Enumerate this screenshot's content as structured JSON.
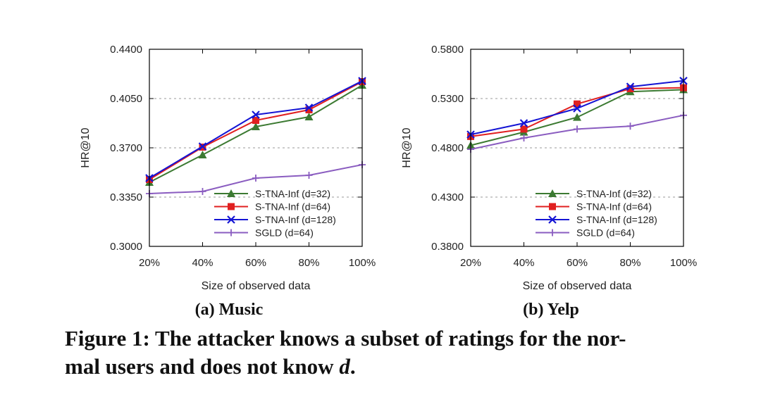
{
  "chart_data": [
    {
      "type": "line",
      "subcaption": "(a) Music",
      "xlabel": "Size of observed data",
      "ylabel": "HR@10",
      "categories": [
        "20%",
        "40%",
        "60%",
        "80%",
        "100%"
      ],
      "yticks": [
        "0.3000",
        "0.3350",
        "0.3700",
        "0.4050",
        "0.4400"
      ],
      "ylim": [
        0.3,
        0.44
      ],
      "grid": "horizontal dashed",
      "legend_position": "bottom-right",
      "series": [
        {
          "name": "S-TNA-Inf (d=32)",
          "values": [
            0.3455,
            0.365,
            0.385,
            0.392,
            0.4145
          ],
          "color": "#3c7a32",
          "marker": "triangle"
        },
        {
          "name": "S-TNA-Inf (d=64)",
          "values": [
            0.3475,
            0.3705,
            0.3895,
            0.397,
            0.417
          ],
          "color": "#e02020",
          "marker": "square"
        },
        {
          "name": "S-TNA-Inf (d=128)",
          "values": [
            0.3485,
            0.371,
            0.3935,
            0.3985,
            0.4175
          ],
          "color": "#1414d4",
          "marker": "x"
        },
        {
          "name": "SGLD (d=64)",
          "values": [
            0.3375,
            0.339,
            0.3485,
            0.3505,
            0.358
          ],
          "color": "#8a5cc0",
          "marker": "plus"
        }
      ]
    },
    {
      "type": "line",
      "subcaption": "(b) Yelp",
      "xlabel": "Size of observed data",
      "ylabel": "HR@10",
      "categories": [
        "20%",
        "40%",
        "60%",
        "80%",
        "100%"
      ],
      "yticks": [
        "0.3800",
        "0.4300",
        "0.4800",
        "0.5300",
        "0.5800"
      ],
      "ylim": [
        0.38,
        0.58
      ],
      "grid": "horizontal dashed",
      "legend_position": "bottom-right",
      "series": [
        {
          "name": "S-TNA-Inf (d=32)",
          "values": [
            0.4825,
            0.496,
            0.511,
            0.537,
            0.539
          ],
          "color": "#3c7a32",
          "marker": "triangle"
        },
        {
          "name": "S-TNA-Inf (d=64)",
          "values": [
            0.4915,
            0.499,
            0.5245,
            0.54,
            0.541
          ],
          "color": "#e02020",
          "marker": "square"
        },
        {
          "name": "S-TNA-Inf (d=128)",
          "values": [
            0.4935,
            0.505,
            0.52,
            0.542,
            0.548
          ],
          "color": "#1414d4",
          "marker": "x"
        },
        {
          "name": "SGLD (d=64)",
          "values": [
            0.4785,
            0.49,
            0.499,
            0.502,
            0.513
          ],
          "color": "#8a5cc0",
          "marker": "plus"
        }
      ]
    }
  ],
  "caption": {
    "line1": "Figure 1: The attacker knows a subset of ratings for the nor-",
    "line2_prefix": "mal users and does not know ",
    "line2_var": "d",
    "line2_suffix": "."
  }
}
